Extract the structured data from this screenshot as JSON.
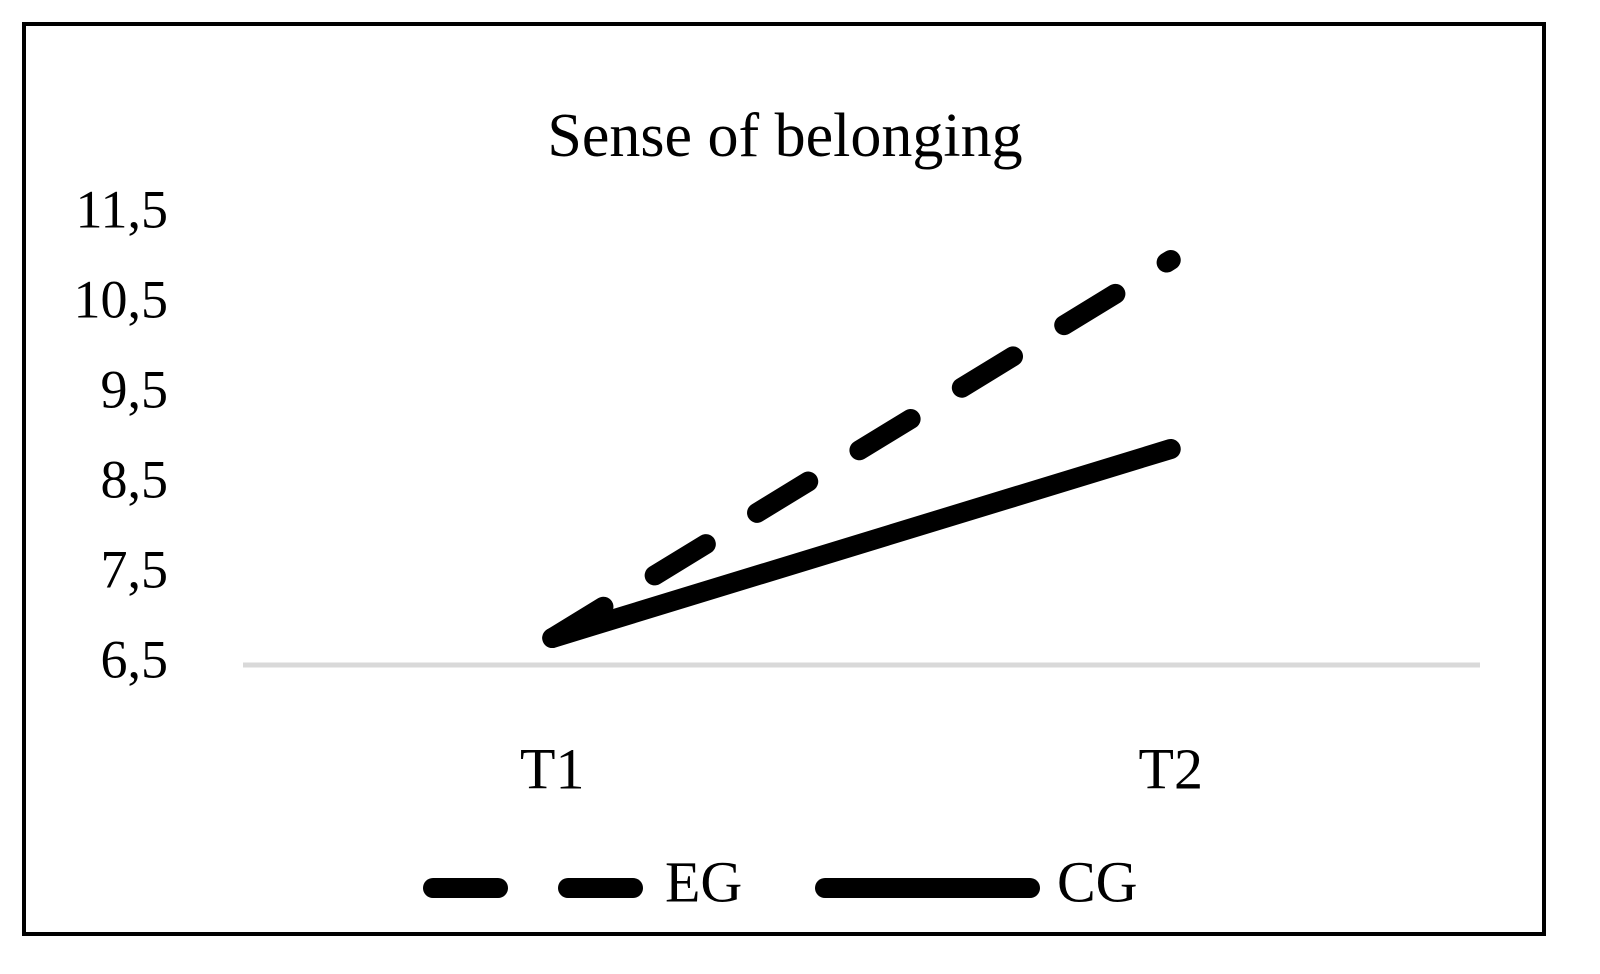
{
  "chart_data": {
    "type": "line",
    "title": "Sense of belonging",
    "categories": [
      "T1",
      "T2"
    ],
    "series": [
      {
        "name": "EG",
        "color": "#000000",
        "style": "dashed",
        "values": [
          6.8,
          11.0
        ]
      },
      {
        "name": "CG",
        "color": "#000000",
        "style": "solid",
        "values": [
          6.8,
          8.9
        ]
      }
    ],
    "ylim": [
      6.5,
      11.5
    ],
    "yticks": [
      {
        "value": 6.5,
        "label": "6,5"
      },
      {
        "value": 7.5,
        "label": "7,5"
      },
      {
        "value": 8.5,
        "label": "8,5"
      },
      {
        "value": 9.5,
        "label": "9,5"
      },
      {
        "value": 10.5,
        "label": "10,5"
      },
      {
        "value": 11.5,
        "label": "11,5"
      }
    ]
  }
}
